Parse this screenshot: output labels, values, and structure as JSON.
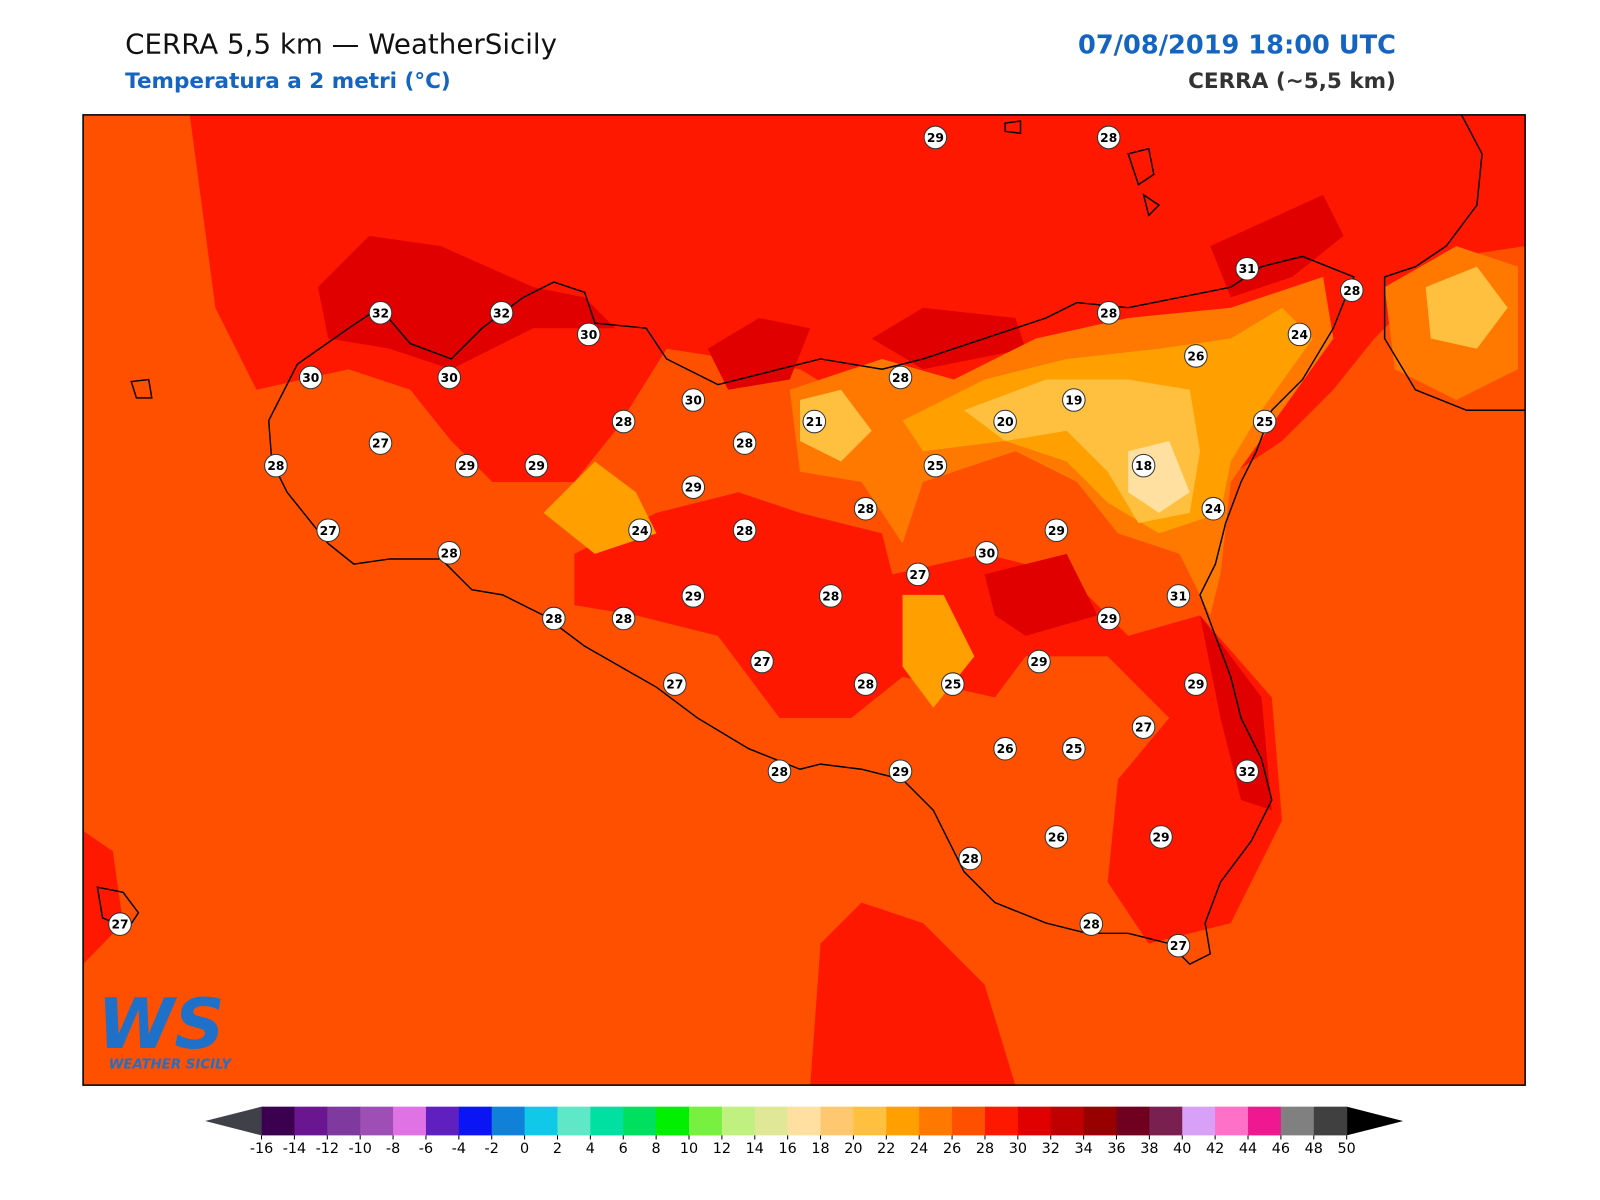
{
  "header": {
    "title": "CERRA 5,5 km — WeatherSicily",
    "subtitle": "Temperatura a 2 metri (°C)",
    "datetime": "07/08/2019 18:00 UTC",
    "model": "CERRA (~5,5 km)"
  },
  "stations": [
    29,
    28,
    31,
    28,
    32,
    32,
    30,
    28,
    24,
    26,
    30,
    30,
    28,
    30,
    19,
    28,
    21,
    20,
    25,
    27,
    28,
    28,
    29,
    29,
    25,
    18,
    29,
    28,
    24,
    24,
    28,
    27,
    29,
    28,
    30,
    27,
    29,
    28,
    31,
    28,
    28,
    29,
    29,
    27,
    27,
    28,
    25,
    29,
    27,
    26,
    25,
    28,
    29,
    32,
    26,
    29,
    28,
    28,
    27,
    27
  ],
  "colorbar": {
    "ticks": [
      -16,
      -14,
      -12,
      -10,
      -8,
      -6,
      -4,
      -2,
      0,
      2,
      4,
      6,
      8,
      10,
      12,
      14,
      16,
      18,
      20,
      22,
      24,
      26,
      28,
      30,
      32,
      34,
      36,
      38,
      40,
      42,
      44,
      46,
      48,
      50
    ],
    "colors": [
      "#3b0050",
      "#6a1690",
      "#7f3aa0",
      "#9d4fb5",
      "#df73e6",
      "#6020c0",
      "#0a14f5",
      "#1080d8",
      "#10c8e8",
      "#5ee8c8",
      "#00e0a0",
      "#00e060",
      "#00f000",
      "#78f040",
      "#c0f080",
      "#e0e898",
      "#ffe0a0",
      "#ffc870",
      "#ffc040",
      "#ffa000",
      "#ff7800",
      "#ff5000",
      "#ff1800",
      "#e00000",
      "#c00000",
      "#980000",
      "#700020",
      "#7a2050",
      "#d8a0f8",
      "#ff70c8",
      "#f01890",
      "#808080",
      "#404040"
    ],
    "under_color": "#404048",
    "over_color": "#000000"
  },
  "logo": {
    "mark": "WS",
    "name": "WEATHER SICILY"
  }
}
